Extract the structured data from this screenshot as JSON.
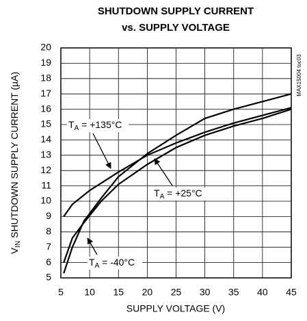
{
  "chart_data": {
    "type": "line",
    "title": [
      "SHUTDOWN SUPPLY CURRENT",
      "vs. SUPPLY VOLTAGE"
    ],
    "x_label": "SUPPLY VOLTAGE (V)",
    "y_label": {
      "symbol": "V",
      "subscript": "IN",
      "text": " SHUTDOWN SUPPLY CURRENT (µA)"
    },
    "side_note": "MAX15004 toc03",
    "xlim": [
      5,
      45
    ],
    "xticks": [
      5,
      10,
      15,
      20,
      25,
      30,
      35,
      40,
      45
    ],
    "ylim": [
      5,
      20
    ],
    "yticks": [
      5,
      6,
      7,
      8,
      9,
      10,
      11,
      12,
      13,
      14,
      15,
      16,
      17,
      18,
      19,
      20
    ],
    "grid": true,
    "color": "#000000",
    "series": [
      {
        "label": {
          "symbol": "T",
          "subscript": "A",
          "text": " = +135°C"
        },
        "x": [
          5.5,
          7,
          10,
          15,
          20,
          25,
          30,
          35,
          40,
          45
        ],
        "values": [
          9.0,
          9.8,
          10.7,
          11.9,
          13.0,
          13.8,
          14.5,
          15.1,
          15.6,
          16.1
        ]
      },
      {
        "label": {
          "symbol": "T",
          "subscript": "A",
          "text": " = +25°C"
        },
        "x": [
          5.5,
          7,
          9,
          12,
          15,
          20,
          25,
          30,
          35,
          40,
          45
        ],
        "values": [
          6.0,
          7.6,
          8.6,
          10.0,
          11.1,
          12.4,
          13.5,
          14.3,
          14.9,
          15.4,
          16.0
        ]
      },
      {
        "label": {
          "symbol": "T",
          "subscript": "A",
          "text": " = -40°C"
        },
        "x": [
          5.5,
          7,
          9,
          12,
          15,
          20,
          25,
          30,
          35,
          40,
          45
        ],
        "values": [
          5.3,
          7.0,
          8.7,
          10.2,
          11.6,
          13.1,
          14.3,
          15.4,
          16.0,
          16.5,
          17.0
        ]
      }
    ]
  }
}
